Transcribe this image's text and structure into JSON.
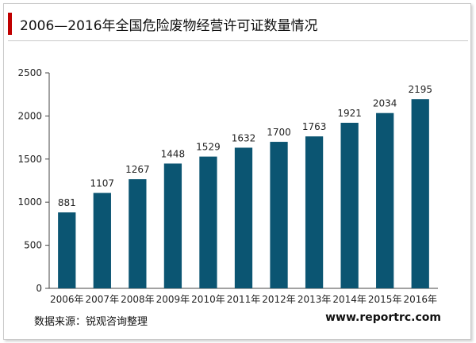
{
  "title": "2006—2016年全国危险废物经营许可证数量情况",
  "source": "数据来源：锐观咨询整理",
  "url": "www.reportrc.com",
  "colors": {
    "bar": "#0b5572",
    "accent": "#c00000",
    "axis": "#444444"
  },
  "chart_data": {
    "type": "bar",
    "title": "2006—2016年全国危险废物经营许可证数量情况",
    "categories": [
      "2006年",
      "2007年",
      "2008年",
      "2009年",
      "2010年",
      "2011年",
      "2012年",
      "2013年",
      "2014年",
      "2015年",
      "2016年"
    ],
    "values": [
      881,
      1107,
      1267,
      1448,
      1529,
      1632,
      1700,
      1763,
      1921,
      2034,
      2195
    ],
    "ylim": [
      0,
      2500
    ],
    "yticks": [
      0,
      500,
      1000,
      1500,
      2000,
      2500
    ],
    "grid": false,
    "data_labels": true
  }
}
